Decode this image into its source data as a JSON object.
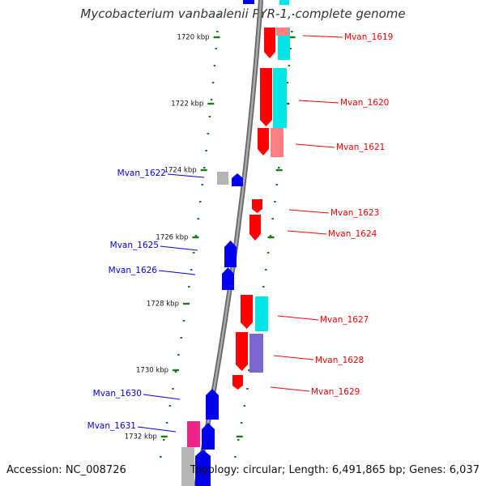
{
  "title": "Mycobacterium vanbaalenii PYR-1, complete genome",
  "accession": "Accession: NC_008726",
  "summary": "Topology: circular; Length: 6,491,865 bp; Genes: 6,037",
  "colors": {
    "forward": "#ff0000",
    "reverse": "#0000ee",
    "backbone": "#888888",
    "tick": "#1a7a1a",
    "cyan": "#00e5e5",
    "pink": "#ff8080",
    "magenta": "#ee2288",
    "purple": "#7a68d0",
    "grey": "#b4b4b4"
  },
  "kbp_labels": [
    "1720 kbp",
    "1722 kbp",
    "1724 kbp",
    "1726 kbp",
    "1728 kbp",
    "1730 kbp",
    "1732 kbp"
  ],
  "forward_genes": [
    "Mvan_1619",
    "Mvan_1620",
    "Mvan_1621",
    "Mvan_1623",
    "Mvan_1624",
    "Mvan_1627",
    "Mvan_1628",
    "Mvan_1629"
  ],
  "reverse_genes": [
    "Mvan_1622",
    "Mvan_1625",
    "Mvan_1626",
    "Mvan_1630",
    "Mvan_1631"
  ]
}
